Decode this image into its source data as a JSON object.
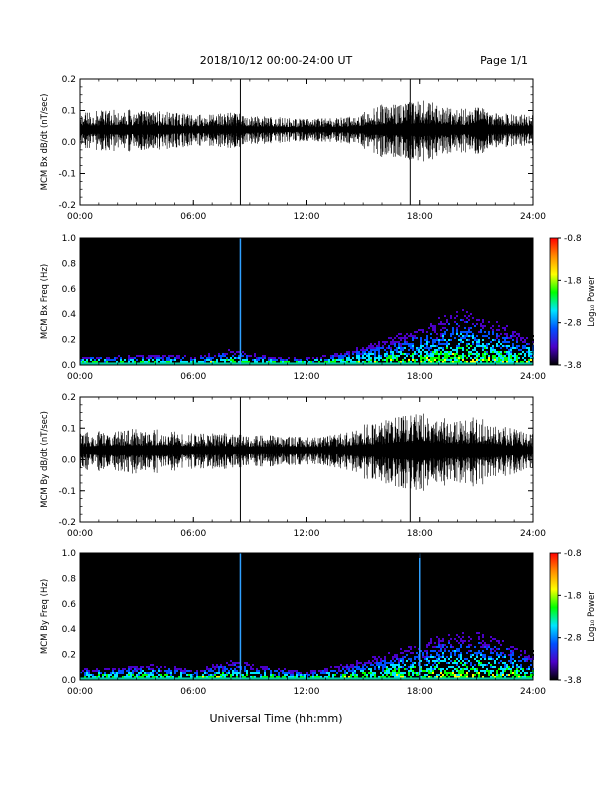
{
  "header": {
    "title": "2018/10/12  00:00-24:00 UT",
    "page": "Page 1/1"
  },
  "footer": {
    "xlabel": "Universal Time (hh:mm)"
  },
  "colorbar": {
    "ticks": [
      "-0.8",
      "-1.8",
      "-2.8",
      "-3.8"
    ],
    "label": "Log₁₀ Power",
    "colors": [
      "#ff0000",
      "#ff8c00",
      "#ffff00",
      "#00ff00",
      "#00e5ff",
      "#0050ff",
      "#4b00c8",
      "#000000"
    ]
  },
  "chart_data": [
    {
      "type": "line",
      "ylabel": "MCM Bx dB/dt (nT/sec)",
      "xlim": [
        0,
        24
      ],
      "ylim": [
        -0.2,
        0.2
      ],
      "x_ticks": [
        "00:00",
        "06:00",
        "12:00",
        "18:00",
        "24:00"
      ],
      "y_ticks": [
        "0.2",
        "0.1",
        "0.0",
        "-0.1",
        "-0.2"
      ],
      "baseline": 0.04,
      "envelope": [
        [
          0,
          0.04
        ],
        [
          2,
          0.05
        ],
        [
          4,
          0.045
        ],
        [
          6,
          0.035
        ],
        [
          8,
          0.04
        ],
        [
          10,
          0.03
        ],
        [
          12,
          0.025
        ],
        [
          14,
          0.03
        ],
        [
          15,
          0.04
        ],
        [
          16,
          0.06
        ],
        [
          17,
          0.06
        ],
        [
          18,
          0.07
        ],
        [
          19,
          0.06
        ],
        [
          20,
          0.05
        ],
        [
          21,
          0.055
        ],
        [
          22,
          0.04
        ],
        [
          24,
          0.035
        ]
      ],
      "spikes": [
        [
          8.5,
          0.22,
          -0.2
        ],
        [
          17.5,
          0.22,
          -0.2
        ]
      ]
    },
    {
      "type": "heatmap",
      "ylabel": "MCM Bx Freq (Hz)",
      "xlim": [
        0,
        24
      ],
      "ylim": [
        0,
        1.0
      ],
      "x_ticks": [
        "00:00",
        "06:00",
        "12:00",
        "18:00",
        "24:00"
      ],
      "y_ticks": [
        "1.0",
        "0.8",
        "0.6",
        "0.4",
        "0.2",
        "0.0"
      ],
      "zlim": [
        -3.8,
        -0.8
      ],
      "zlabel": "Log₁₀ Power",
      "vertical_lines": [
        8.5
      ],
      "activity": [
        [
          0,
          0.06
        ],
        [
          2,
          0.07
        ],
        [
          4,
          0.08
        ],
        [
          6,
          0.06
        ],
        [
          8,
          0.12
        ],
        [
          10,
          0.06
        ],
        [
          12,
          0.05
        ],
        [
          14,
          0.1
        ],
        [
          16,
          0.2
        ],
        [
          18,
          0.3
        ],
        [
          20,
          0.45
        ],
        [
          22,
          0.35
        ],
        [
          24,
          0.2
        ]
      ]
    },
    {
      "type": "line",
      "ylabel": "MCM By dB/dt (nT/sec)",
      "xlim": [
        0,
        24
      ],
      "ylim": [
        -0.2,
        0.2
      ],
      "x_ticks": [
        "00:00",
        "06:00",
        "12:00",
        "18:00",
        "24:00"
      ],
      "y_ticks": [
        "0.2",
        "0.1",
        "0.0",
        "-0.1",
        "-0.2"
      ],
      "baseline": 0.03,
      "envelope": [
        [
          0,
          0.04
        ],
        [
          2,
          0.05
        ],
        [
          4,
          0.05
        ],
        [
          6,
          0.04
        ],
        [
          8,
          0.04
        ],
        [
          10,
          0.035
        ],
        [
          12,
          0.03
        ],
        [
          14,
          0.04
        ],
        [
          15,
          0.06
        ],
        [
          16,
          0.07
        ],
        [
          17,
          0.08
        ],
        [
          18,
          0.09
        ],
        [
          19,
          0.08
        ],
        [
          20,
          0.07
        ],
        [
          21,
          0.08
        ],
        [
          22,
          0.06
        ],
        [
          24,
          0.04
        ]
      ],
      "spikes": [
        [
          8.5,
          0.22,
          -0.2
        ],
        [
          17.5,
          0.05,
          -0.2
        ]
      ]
    },
    {
      "type": "heatmap",
      "ylabel": "MCM By Freq (Hz)",
      "xlim": [
        0,
        24
      ],
      "ylim": [
        0,
        1.0
      ],
      "x_ticks": [
        "00:00",
        "06:00",
        "12:00",
        "18:00",
        "24:00"
      ],
      "y_ticks": [
        "1.0",
        "0.8",
        "0.6",
        "0.4",
        "0.2",
        "0.0"
      ],
      "zlim": [
        -3.8,
        -0.8
      ],
      "zlabel": "Log₁₀ Power",
      "vertical_lines": [
        8.5,
        18.0
      ],
      "activity": [
        [
          0,
          0.08
        ],
        [
          2,
          0.1
        ],
        [
          4,
          0.12
        ],
        [
          6,
          0.08
        ],
        [
          8,
          0.15
        ],
        [
          10,
          0.1
        ],
        [
          12,
          0.06
        ],
        [
          14,
          0.12
        ],
        [
          16,
          0.2
        ],
        [
          18,
          0.3
        ],
        [
          20,
          0.4
        ],
        [
          22,
          0.35
        ],
        [
          24,
          0.2
        ]
      ]
    }
  ]
}
